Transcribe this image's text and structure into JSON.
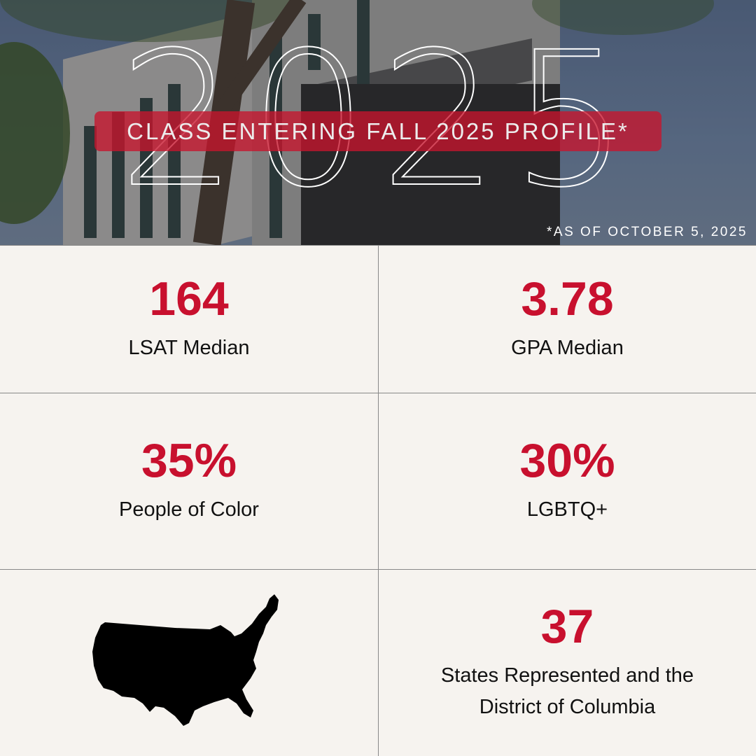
{
  "header": {
    "year": "2025",
    "banner": "CLASS ENTERING FALL 2025 PROFILE*",
    "footnote": "*AS OF OCTOBER 5, 2025"
  },
  "stats": [
    {
      "value": "164",
      "label": "LSAT Median"
    },
    {
      "value": "3.78",
      "label": "GPA Median"
    },
    {
      "value": "35%",
      "label": "People of Color"
    },
    {
      "value": "30%",
      "label": "LGBTQ+"
    },
    {
      "value": "37",
      "label": "States Represented and the District of Columbia"
    }
  ],
  "map_icon": "usa-map-icon",
  "colors": {
    "accent": "#c8102e",
    "background": "#f6f3ef"
  }
}
